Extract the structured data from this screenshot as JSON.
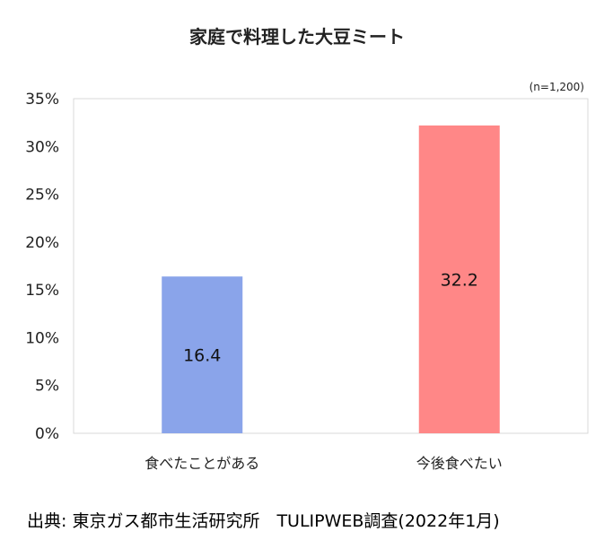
{
  "chart_data": {
    "type": "bar",
    "title": "家庭で料理した大豆ミート",
    "note": "(n=1,200)",
    "categories": [
      "食べたことがある",
      "今後食べたい"
    ],
    "values": [
      16.4,
      32.2
    ],
    "data_labels": [
      "16.4",
      "32.2"
    ],
    "colors": [
      "#8aa4ea",
      "#ff8787"
    ],
    "ylim": [
      0,
      35
    ],
    "yticks": [
      0,
      5,
      10,
      15,
      20,
      25,
      30,
      35
    ],
    "ytick_labels": [
      "0%",
      "5%",
      "10%",
      "15%",
      "20%",
      "25%",
      "30%",
      "35%"
    ],
    "grid": false,
    "legend": "none"
  },
  "source": "出典: 東京ガス都市生活研究所　TULIPWEB調査(2022年1月)"
}
